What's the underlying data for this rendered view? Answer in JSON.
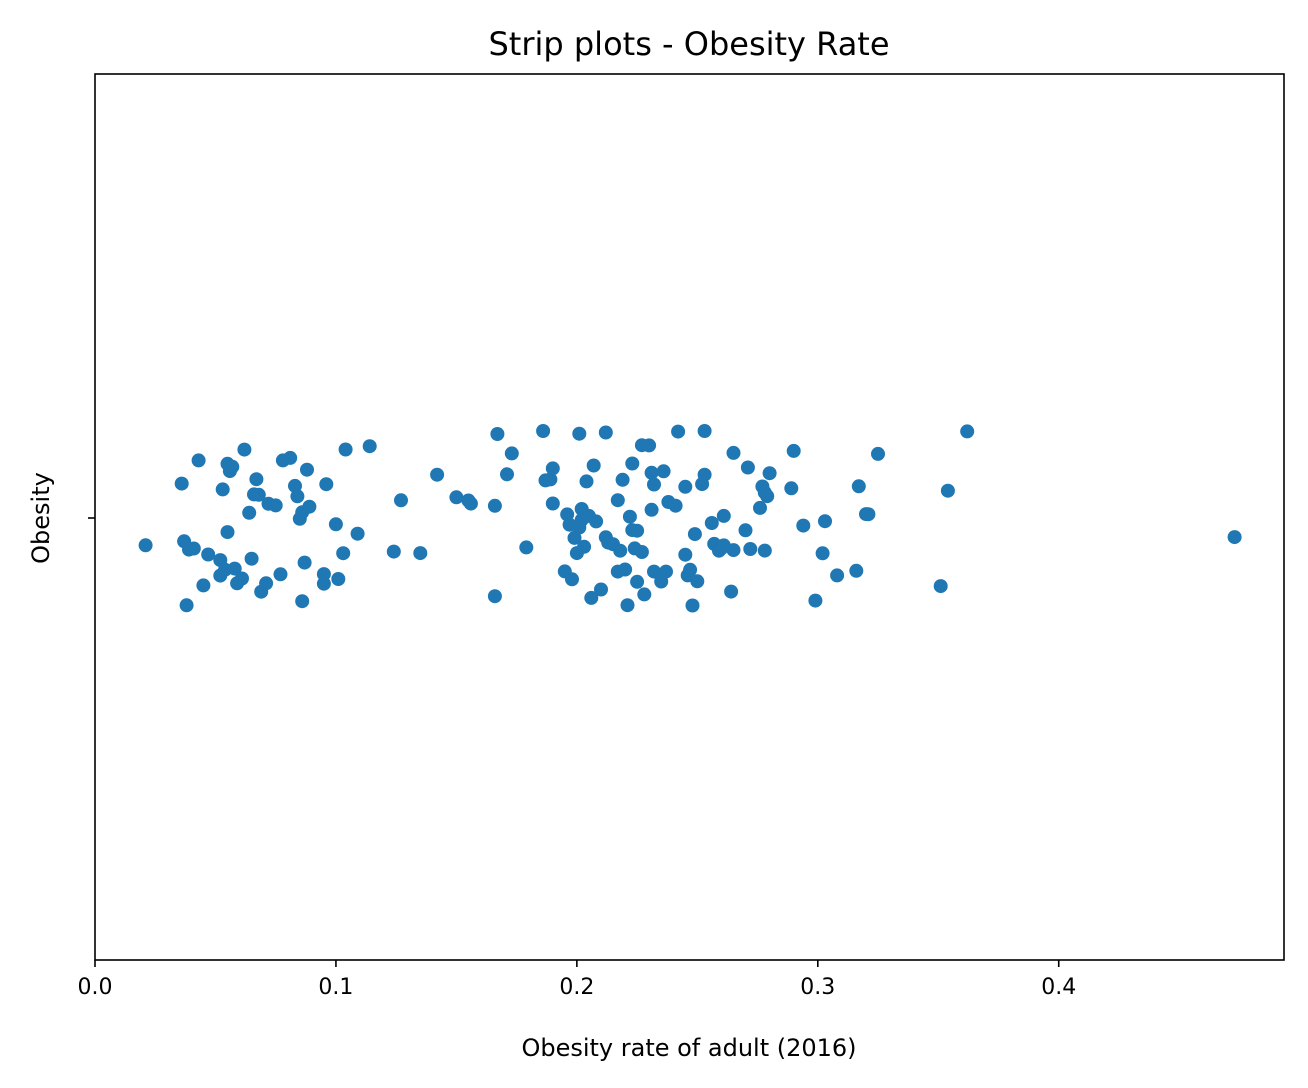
{
  "chart_data": {
    "type": "scatter",
    "subtype": "strip",
    "title": "Strip plots - Obesity Rate",
    "xlabel": "Obesity rate of adult (2016)",
    "ylabel": "",
    "category_label": "Obesity",
    "xlim": [
      0.0,
      0.4935
    ],
    "x_ticks": [
      0.0,
      0.1,
      0.2,
      0.3,
      0.4
    ],
    "x_tick_labels": [
      "0.0",
      "0.1",
      "0.2",
      "0.3",
      "0.4"
    ],
    "grid": false,
    "legend": "none",
    "series": [
      {
        "color": "#1f77b4",
        "x": [
          0.021,
          0.036,
          0.037,
          0.038,
          0.039,
          0.041,
          0.043,
          0.045,
          0.047,
          0.052,
          0.052,
          0.053,
          0.054,
          0.055,
          0.055,
          0.056,
          0.057,
          0.058,
          0.059,
          0.061,
          0.062,
          0.064,
          0.065,
          0.066,
          0.067,
          0.068,
          0.069,
          0.071,
          0.072,
          0.075,
          0.077,
          0.078,
          0.081,
          0.083,
          0.084,
          0.085,
          0.086,
          0.086,
          0.087,
          0.088,
          0.089,
          0.095,
          0.095,
          0.096,
          0.1,
          0.101,
          0.103,
          0.104,
          0.109,
          0.114,
          0.124,
          0.127,
          0.135,
          0.142,
          0.15,
          0.155,
          0.156,
          0.166,
          0.166,
          0.167,
          0.171,
          0.173,
          0.179,
          0.186,
          0.187,
          0.189,
          0.19,
          0.19,
          0.195,
          0.196,
          0.197,
          0.198,
          0.199,
          0.2,
          0.201,
          0.201,
          0.202,
          0.202,
          0.203,
          0.204,
          0.205,
          0.206,
          0.207,
          0.208,
          0.21,
          0.212,
          0.212,
          0.213,
          0.215,
          0.217,
          0.217,
          0.218,
          0.219,
          0.22,
          0.221,
          0.222,
          0.223,
          0.223,
          0.224,
          0.225,
          0.225,
          0.227,
          0.227,
          0.228,
          0.23,
          0.231,
          0.231,
          0.232,
          0.232,
          0.235,
          0.236,
          0.237,
          0.238,
          0.241,
          0.242,
          0.245,
          0.245,
          0.246,
          0.247,
          0.248,
          0.249,
          0.25,
          0.252,
          0.253,
          0.253,
          0.256,
          0.257,
          0.259,
          0.26,
          0.261,
          0.261,
          0.264,
          0.265,
          0.265,
          0.27,
          0.271,
          0.272,
          0.276,
          0.277,
          0.278,
          0.278,
          0.279,
          0.28,
          0.289,
          0.29,
          0.294,
          0.299,
          0.302,
          0.303,
          0.308,
          0.316,
          0.317,
          0.32,
          0.321,
          0.325,
          0.351,
          0.354,
          0.362,
          0.473
        ]
      }
    ]
  }
}
